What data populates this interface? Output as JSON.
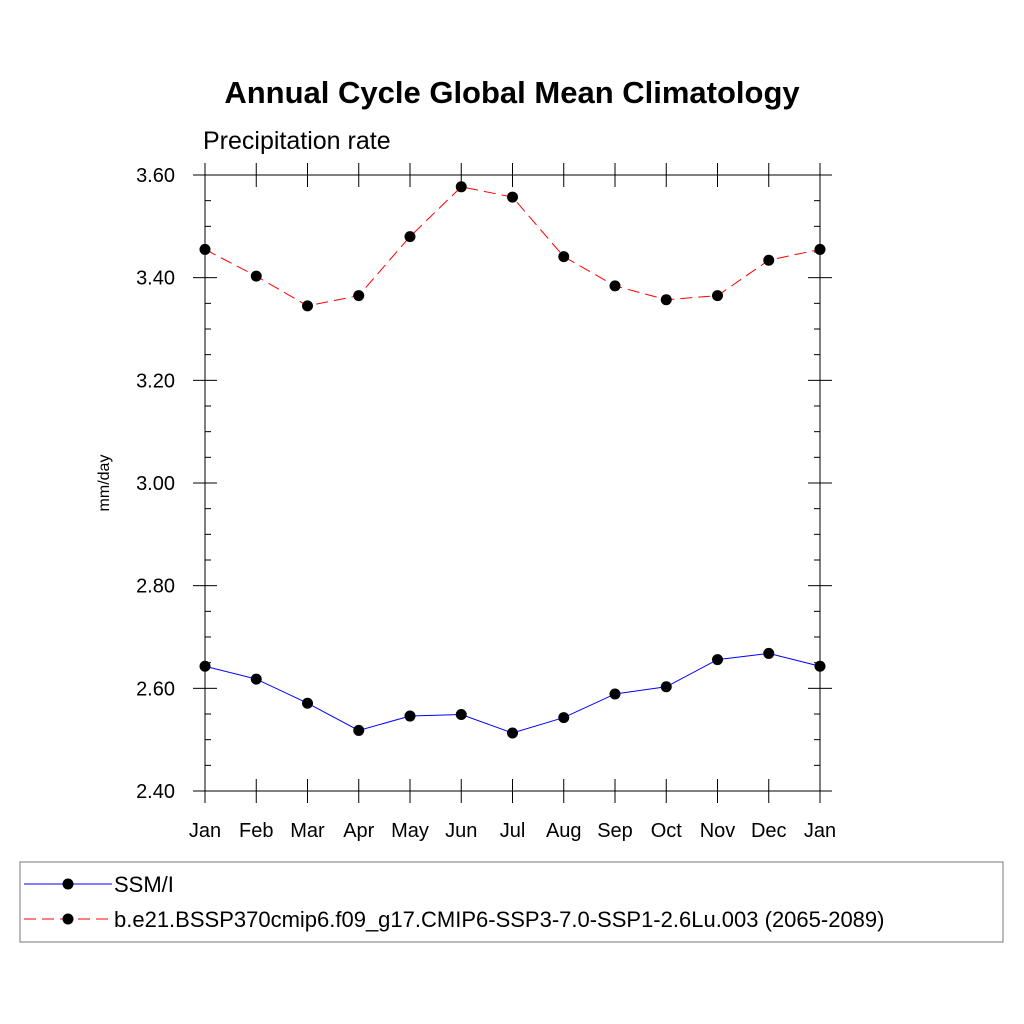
{
  "chart_data": {
    "type": "line",
    "title": "Annual Cycle Global Mean Climatology",
    "subtitle": "Precipitation rate",
    "ylabel": "mm/day",
    "xlabel": "",
    "categories": [
      "Jan",
      "Feb",
      "Mar",
      "Apr",
      "May",
      "Jun",
      "Jul",
      "Aug",
      "Sep",
      "Oct",
      "Nov",
      "Dec",
      "Jan"
    ],
    "ylim": [
      2.4,
      3.6
    ],
    "yticks": [
      "2.40",
      "2.60",
      "2.80",
      "3.00",
      "3.20",
      "3.40",
      "3.60"
    ],
    "grid": false,
    "legend_position": "bottom",
    "series": [
      {
        "name": "SSM/I",
        "color": "#0000ff",
        "line_style": "solid",
        "marker": "filled-circle",
        "values": [
          2.643,
          2.618,
          2.571,
          2.518,
          2.546,
          2.549,
          2.513,
          2.543,
          2.589,
          2.603,
          2.656,
          2.668,
          2.643
        ]
      },
      {
        "name": "b.e21.BSSP370cmip6.f09_g17.CMIP6-SSP3-7.0-SSP1-2.6Lu.003 (2065-2089)",
        "color": "#ff0000",
        "line_style": "dashed",
        "marker": "filled-circle",
        "values": [
          3.455,
          3.403,
          3.345,
          3.365,
          3.48,
          3.577,
          3.557,
          3.441,
          3.384,
          3.357,
          3.365,
          3.434,
          3.455
        ]
      }
    ]
  }
}
